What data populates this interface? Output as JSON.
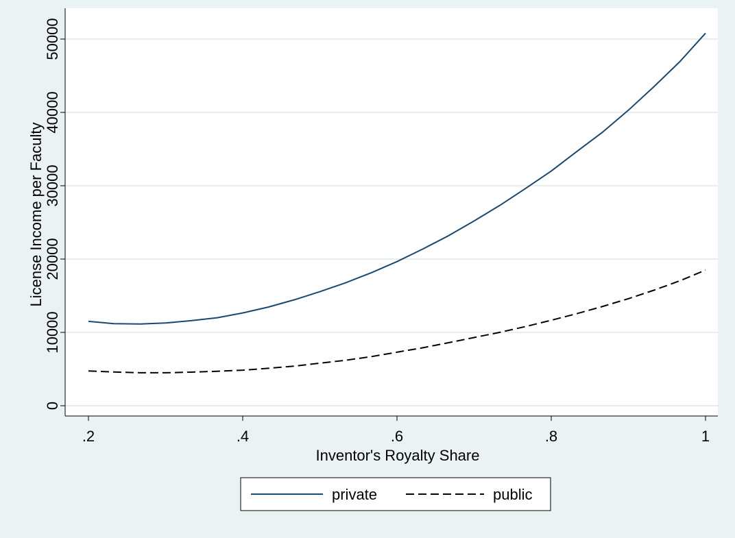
{
  "chart_data": {
    "type": "line",
    "title": "",
    "xlabel": "Inventor's Royalty Share",
    "ylabel": "License Income per Faculty",
    "xlim": [
      0.2,
      1.0
    ],
    "ylim": [
      0,
      50000
    ],
    "xticks": [
      {
        "value": 0.2,
        "label": ".2"
      },
      {
        "value": 0.4,
        "label": ".4"
      },
      {
        "value": 0.6,
        "label": ".6"
      },
      {
        "value": 0.8,
        "label": ".8"
      },
      {
        "value": 1.0,
        "label": "1"
      }
    ],
    "yticks": [
      {
        "value": 0,
        "label": "0"
      },
      {
        "value": 10000,
        "label": "10000"
      },
      {
        "value": 20000,
        "label": "20000"
      },
      {
        "value": 30000,
        "label": "30000"
      },
      {
        "value": 40000,
        "label": "40000"
      },
      {
        "value": 50000,
        "label": "50000"
      }
    ],
    "grid": "horizontal",
    "legend_position": "bottom",
    "x": [
      0.2,
      0.233,
      0.267,
      0.3,
      0.333,
      0.367,
      0.4,
      0.433,
      0.467,
      0.5,
      0.533,
      0.567,
      0.6,
      0.633,
      0.667,
      0.7,
      0.733,
      0.767,
      0.8,
      0.833,
      0.867,
      0.9,
      0.933,
      0.967,
      1.0
    ],
    "series": [
      {
        "name": "private",
        "color": "#1a476f",
        "dash": "solid",
        "values": [
          11500,
          11200,
          11150,
          11280,
          11600,
          12000,
          12650,
          13450,
          14450,
          15550,
          16750,
          18150,
          19650,
          21350,
          23200,
          25200,
          27300,
          29650,
          32000,
          34650,
          37350,
          40300,
          43500,
          46950,
          50800
        ]
      },
      {
        "name": "public",
        "color": "#000000",
        "dash": "dashed",
        "values": [
          4750,
          4600,
          4500,
          4500,
          4580,
          4700,
          4850,
          5100,
          5400,
          5800,
          6200,
          6700,
          7300,
          7900,
          8600,
          9300,
          10000,
          10800,
          11650,
          12550,
          13550,
          14600,
          15750,
          17050,
          18500
        ]
      }
    ]
  }
}
